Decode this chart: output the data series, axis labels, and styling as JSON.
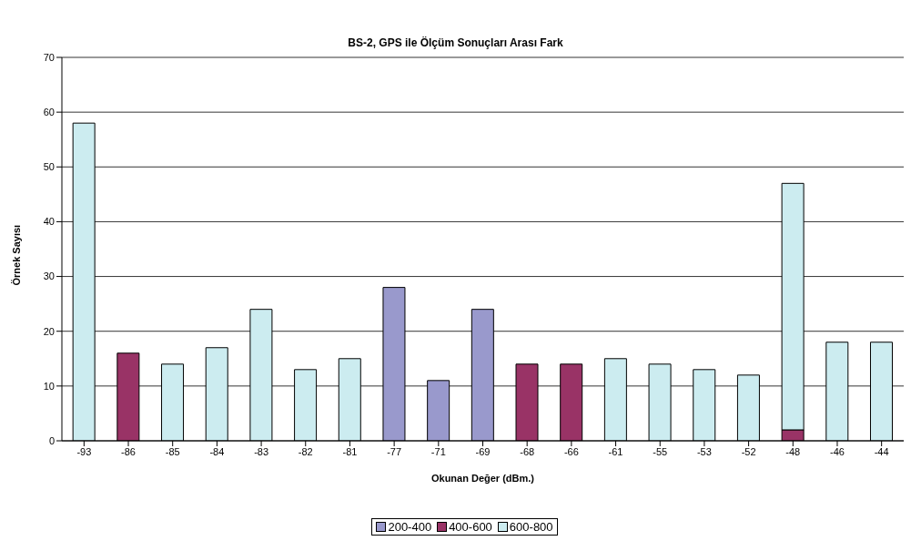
{
  "chart_data": {
    "type": "bar",
    "title": "BS-2, GPS ile Ölçüm Sonuçları Arası Fark",
    "xlabel": "Okunan Değer (dBm.)",
    "ylabel": "Örnek Sayısı",
    "categories": [
      "-93",
      "-86",
      "-85",
      "-84",
      "-83",
      "-82",
      "-81",
      "-77",
      "-71",
      "-69",
      "-68",
      "-66",
      "-61",
      "-55",
      "-53",
      "-52",
      "-48",
      "-46",
      "-44"
    ],
    "stacked": true,
    "series": [
      {
        "name": "200-400",
        "color": "#9999cc",
        "values": [
          null,
          null,
          null,
          null,
          null,
          null,
          null,
          28,
          11,
          24,
          null,
          null,
          null,
          null,
          null,
          null,
          null,
          null,
          null
        ]
      },
      {
        "name": "400-600",
        "color": "#993366",
        "values": [
          null,
          16,
          null,
          null,
          null,
          null,
          null,
          null,
          null,
          null,
          14,
          14,
          null,
          null,
          null,
          null,
          2,
          null,
          null
        ]
      },
      {
        "name": "600-800",
        "color": "#ccecf0",
        "values": [
          58,
          null,
          14,
          17,
          24,
          13,
          15,
          null,
          null,
          null,
          null,
          null,
          15,
          14,
          13,
          12,
          45,
          18,
          18
        ]
      }
    ],
    "ylim": [
      0,
      70
    ],
    "yticks": [
      0,
      10,
      20,
      30,
      40,
      50,
      60,
      70
    ],
    "grid": "y",
    "legend": "bottom"
  }
}
